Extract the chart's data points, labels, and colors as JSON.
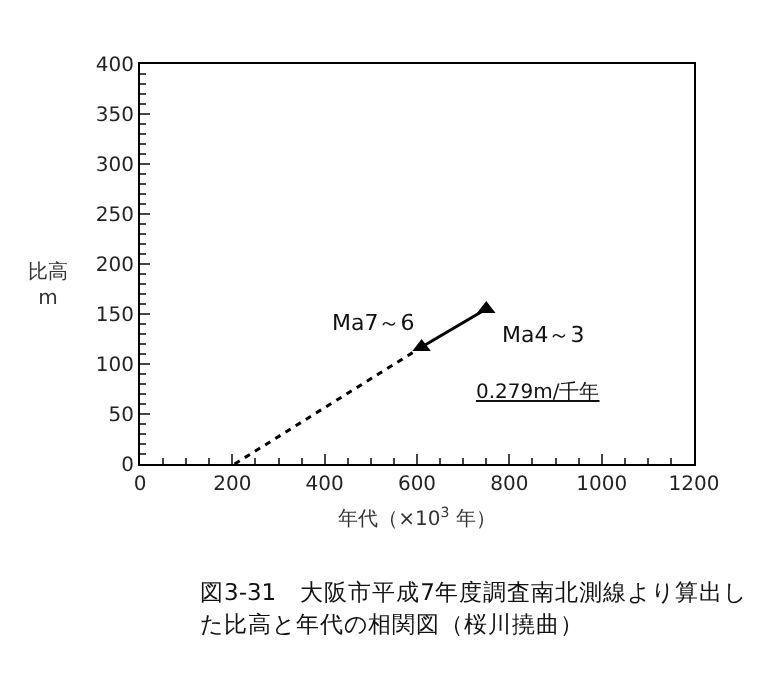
{
  "chart_data": {
    "type": "line",
    "xlabel": "年代（×10$^{3}$ 年）",
    "ylabel": "比高 m",
    "series": [
      {
        "x": [
          610,
          750
        ],
        "values": [
          117,
          155
        ],
        "color": "#000000",
        "marker": "triangle",
        "line_style": "solid"
      },
      {
        "x": [
          205,
          610
        ],
        "values": [
          0,
          117
        ],
        "color": "#000000",
        "marker": "none",
        "line_style": "dotted"
      }
    ],
    "xlim": [
      0,
      1200
    ],
    "xticks": [
      0,
      200,
      400,
      600,
      800,
      1000,
      1200
    ],
    "ylim": [
      0,
      400
    ],
    "yticks": [
      0,
      50,
      100,
      150,
      200,
      250,
      300,
      350,
      400
    ],
    "grid": false,
    "annotations": [
      {
        "text": "Ma7～6",
        "x": 610,
        "y": 117
      },
      {
        "text": "Ma4～3",
        "x": 750,
        "y": 155
      },
      "0.279m/千年",
      "図3-31　大阪市平成7年度調査南北測線より算出した比高と年代の相関図（桜川撓曲）"
    ]
  }
}
